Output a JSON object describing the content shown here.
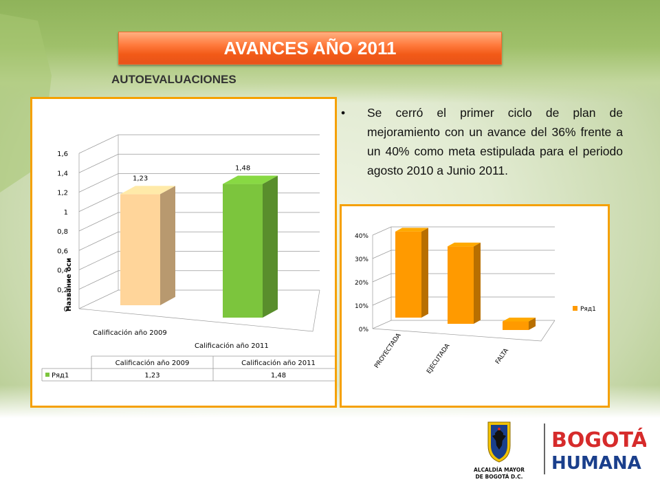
{
  "slide": {
    "title": "AVANCES AÑO 2011",
    "subtitle": "AUTOEVALUACIONES",
    "bullet": "Se cerró el primer ciclo de plan de mejoramiento con un avance del 36% frente a un 40% como meta estipulada para el periodo agosto 2010 a Junio 2011."
  },
  "colors": {
    "title_bar": "#f25a17",
    "chart_border": "#f5a000",
    "bar_2009": "#ffd59a",
    "bar_2011": "#7cc53d",
    "bar_orange": "#ff9a00"
  },
  "chart_data": [
    {
      "type": "bar",
      "three_d": true,
      "categories": [
        "Calificación año 2009",
        "Calificación año 2011"
      ],
      "series": [
        {
          "name": "Ряд1",
          "values": [
            1.23,
            1.48
          ]
        }
      ],
      "value_labels": [
        "1,23",
        "1,48"
      ],
      "ylabel": "Название оси",
      "ylim": [
        0,
        1.6
      ],
      "y_ticks": [
        "0",
        "0,2",
        "0,4",
        "0,6",
        "0,8",
        "1",
        "1,2",
        "1,4",
        "1,6"
      ],
      "grid": true,
      "data_table": {
        "headers": [
          "Calificación año 2009",
          "Calificación año 2011"
        ],
        "row_label": "Ряд1",
        "values": [
          "1,23",
          "1,48"
        ]
      }
    },
    {
      "type": "bar",
      "three_d": true,
      "categories": [
        "PROYECTADA",
        "EJECUTADA",
        "FALTA"
      ],
      "series": [
        {
          "name": "Ряд1",
          "values": [
            0.4,
            0.36,
            0.04
          ]
        }
      ],
      "ylim": [
        0,
        0.4
      ],
      "y_ticks": [
        "0%",
        "10%",
        "20%",
        "30%",
        "40%"
      ],
      "grid": true,
      "legend": "right"
    }
  ],
  "logo": {
    "alcaldia_line1": "ALCALDÍA MAYOR",
    "alcaldia_line2": "DE BOGOTÁ D.C.",
    "bogota": "BOGOTÁ",
    "humana": "HUMANA"
  }
}
